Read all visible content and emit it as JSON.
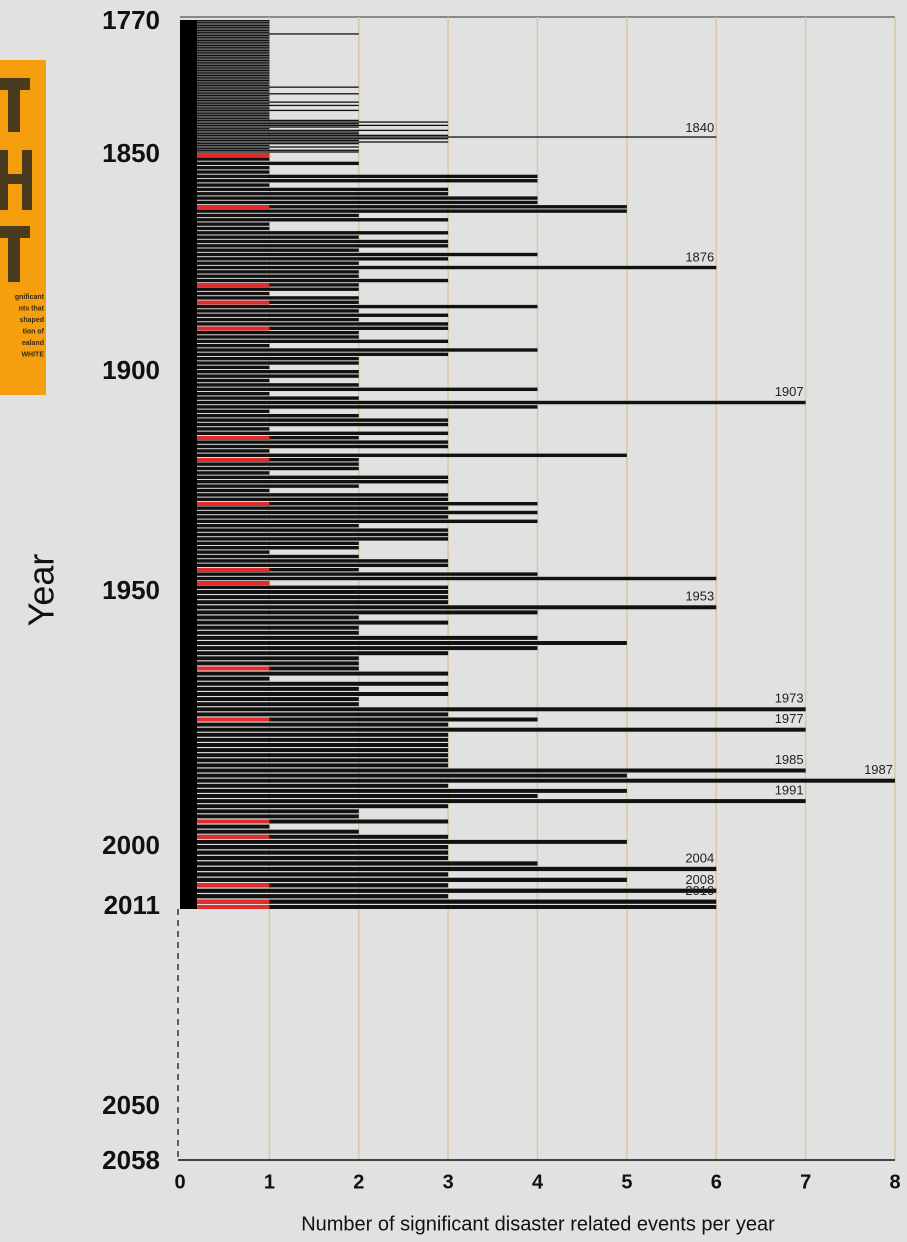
{
  "chart_data": {
    "type": "bar",
    "orientation": "horizontal",
    "y_label": "Year",
    "x_label": "Number of significant disaster related events per year",
    "color": "#111111",
    "grid": true,
    "grid_color": "#d8c7a4",
    "xlim": [
      0,
      8
    ],
    "xticks": [
      0,
      1,
      2,
      3,
      4,
      5,
      6,
      7,
      8
    ],
    "ylim": [
      1770,
      2058
    ],
    "yticks": [
      1770,
      1850,
      1900,
      1950,
      2000,
      2011,
      2050,
      2058
    ],
    "y": [
      1770,
      1771,
      1772,
      1773,
      1774,
      1775,
      1776,
      1777,
      1778,
      1779,
      1780,
      1781,
      1782,
      1783,
      1784,
      1785,
      1786,
      1787,
      1788,
      1789,
      1790,
      1791,
      1792,
      1793,
      1794,
      1795,
      1796,
      1797,
      1798,
      1799,
      1800,
      1801,
      1802,
      1803,
      1804,
      1805,
      1806,
      1807,
      1808,
      1809,
      1810,
      1811,
      1812,
      1813,
      1814,
      1815,
      1816,
      1817,
      1818,
      1819,
      1820,
      1821,
      1822,
      1823,
      1824,
      1825,
      1826,
      1827,
      1828,
      1829,
      1830,
      1831,
      1832,
      1833,
      1834,
      1835,
      1836,
      1837,
      1838,
      1839,
      1840,
      1841,
      1842,
      1843,
      1844,
      1845,
      1846,
      1847,
      1848,
      1849,
      1850,
      1851,
      1852,
      1853,
      1854,
      1855,
      1856,
      1857,
      1858,
      1859,
      1860,
      1861,
      1862,
      1863,
      1864,
      1865,
      1866,
      1867,
      1868,
      1869,
      1870,
      1871,
      1872,
      1873,
      1874,
      1875,
      1876,
      1877,
      1878,
      1879,
      1880,
      1881,
      1882,
      1883,
      1884,
      1885,
      1886,
      1887,
      1888,
      1889,
      1890,
      1891,
      1892,
      1893,
      1894,
      1895,
      1896,
      1897,
      1898,
      1899,
      1900,
      1901,
      1902,
      1903,
      1904,
      1905,
      1906,
      1907,
      1908,
      1909,
      1910,
      1911,
      1912,
      1913,
      1914,
      1915,
      1916,
      1917,
      1918,
      1919,
      1920,
      1921,
      1922,
      1923,
      1924,
      1925,
      1926,
      1927,
      1928,
      1929,
      1930,
      1931,
      1932,
      1933,
      1934,
      1935,
      1936,
      1937,
      1938,
      1939,
      1940,
      1941,
      1942,
      1943,
      1944,
      1945,
      1946,
      1947,
      1948,
      1949,
      1950,
      1951,
      1952,
      1953,
      1954,
      1955,
      1956,
      1957,
      1958,
      1959,
      1960,
      1961,
      1962,
      1963,
      1964,
      1965,
      1966,
      1967,
      1968,
      1969,
      1970,
      1971,
      1972,
      1973,
      1974,
      1975,
      1976,
      1977,
      1978,
      1979,
      1980,
      1981,
      1982,
      1983,
      1984,
      1985,
      1986,
      1987,
      1988,
      1989,
      1990,
      1991,
      1992,
      1993,
      1994,
      1995,
      1996,
      1997,
      1998,
      1999,
      2000,
      2001,
      2002,
      2003,
      2004,
      2005,
      2006,
      2007,
      2008,
      2009,
      2010,
      2011
    ],
    "values": [
      1,
      1,
      1,
      1,
      1,
      1,
      1,
      1,
      2,
      1,
      1,
      1,
      1,
      1,
      1,
      1,
      1,
      1,
      1,
      1,
      1,
      1,
      1,
      1,
      1,
      1,
      1,
      1,
      1,
      1,
      1,
      1,
      1,
      1,
      1,
      1,
      1,
      1,
      1,
      1,
      2,
      1,
      1,
      1,
      2,
      1,
      1,
      1,
      1,
      2,
      1,
      2,
      1,
      1,
      2,
      1,
      1,
      1,
      1,
      1,
      2,
      3,
      2,
      3,
      2,
      1,
      3,
      2,
      2,
      3,
      6,
      3,
      2,
      3,
      2,
      1,
      2,
      1,
      2,
      2,
      1,
      1,
      2,
      1,
      1,
      4,
      4,
      1,
      3,
      3,
      4,
      4,
      5,
      5,
      2,
      3,
      1,
      1,
      3,
      2,
      3,
      3,
      2,
      4,
      3,
      2,
      6,
      2,
      2,
      3,
      2,
      2,
      1,
      2,
      2,
      4,
      2,
      3,
      2,
      3,
      3,
      2,
      2,
      3,
      1,
      4,
      3,
      2,
      2,
      1,
      2,
      2,
      1,
      2,
      4,
      1,
      2,
      7,
      4,
      1,
      2,
      3,
      3,
      1,
      3,
      2,
      3,
      3,
      1,
      5,
      2,
      2,
      2,
      1,
      3,
      3,
      2,
      1,
      3,
      3,
      4,
      3,
      4,
      3,
      4,
      2,
      3,
      3,
      3,
      2,
      2,
      1,
      2,
      3,
      3,
      2,
      4,
      6,
      1,
      3,
      3,
      3,
      3,
      6,
      4,
      2,
      3,
      2,
      2,
      4,
      5,
      4,
      3,
      2,
      2,
      2,
      3,
      1,
      3,
      2,
      3,
      2,
      2,
      7,
      3,
      4,
      3,
      7,
      3,
      3,
      3,
      3,
      3,
      3,
      3,
      7,
      5,
      8,
      3,
      5,
      4,
      7,
      3,
      2,
      2,
      3,
      1,
      2,
      3,
      5,
      3,
      3,
      3,
      4,
      6,
      3,
      5,
      3,
      6,
      3,
      6,
      6
    ],
    "highlight": {
      "color": "#e32b2b",
      "categories": [
        1850,
        1862,
        1880,
        1884,
        1890,
        1915,
        1920,
        1930,
        1945,
        1948,
        1965,
        1975,
        1995,
        1998,
        2007,
        2010,
        2011
      ]
    },
    "annotations": [
      {
        "text": "1840"
      },
      {
        "text": "1876"
      },
      {
        "text": "1907"
      },
      {
        "text": "1953"
      },
      {
        "text": "1973"
      },
      {
        "text": "1977"
      },
      {
        "text": "1985"
      },
      {
        "text": "1987"
      },
      {
        "text": "1991"
      },
      {
        "text": "2004"
      },
      {
        "text": "2008"
      },
      {
        "text": "2010"
      }
    ]
  },
  "cover": {
    "lines": [
      "gnificant",
      "nts that",
      "shaped",
      "tion of",
      "ealand",
      "WHITE"
    ]
  }
}
